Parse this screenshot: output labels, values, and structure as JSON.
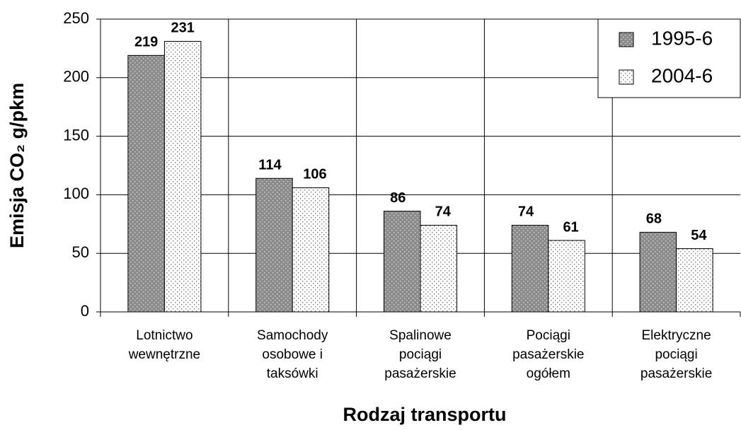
{
  "chart_data": {
    "type": "bar",
    "categories": [
      [
        "Lotnictwo",
        "wewnętrzne"
      ],
      [
        "Samochody",
        "osobowe i",
        "taksówki"
      ],
      [
        "Spalinowe",
        "pociągi",
        "pasażerskie"
      ],
      [
        "Pociągi",
        "pasażerskie",
        "ogółem"
      ],
      [
        "Elektryczne",
        "pociągi",
        "pasażerskie"
      ]
    ],
    "series": [
      {
        "name": "1995-6",
        "color": "#8c8c8c",
        "values": [
          219,
          114,
          86,
          74,
          68
        ]
      },
      {
        "name": "2004-6",
        "color": "#ffffff",
        "values": [
          231,
          106,
          74,
          61,
          54
        ]
      }
    ],
    "ylabel": "Emisja CO₂ g/pkm",
    "xlabel": "Rodzaj transportu",
    "ylim": [
      0,
      250
    ],
    "yticks": [
      0,
      50,
      100,
      150,
      200,
      250
    ],
    "grid": true,
    "legend": "upper right"
  }
}
